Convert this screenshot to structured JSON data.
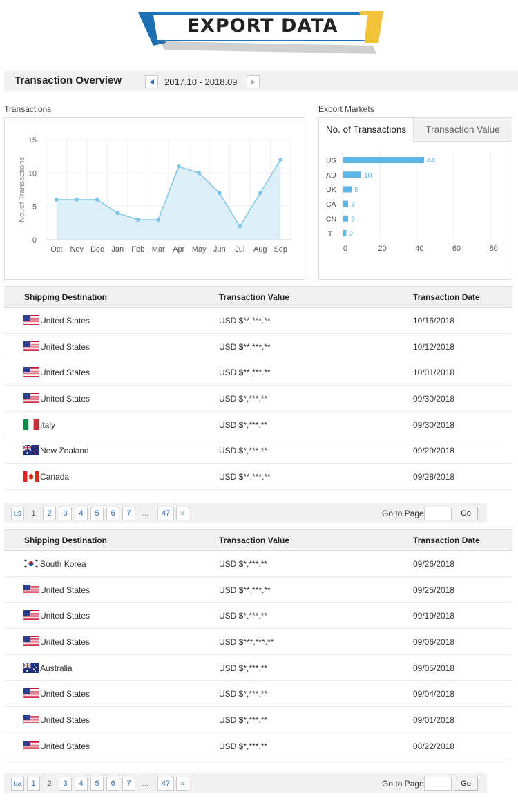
{
  "banner": {
    "title": "EXPORT DATA"
  },
  "overview": {
    "title": "Transaction Overview",
    "period": "2017.10 - 2018.09"
  },
  "transactions_label": "Transactions",
  "export_markets_label": "Export Markets",
  "tabs": {
    "active": "No. of Transactions",
    "inactive": "Transaction Value"
  },
  "colors": {
    "line": "#7fc6e8",
    "area": "#d9edf8",
    "bar": "#5bb5e6",
    "link": "#2f6db3"
  },
  "chart_data": [
    {
      "type": "area",
      "categories": [
        "Oct",
        "Nov",
        "Dec",
        "Jan",
        "Feb",
        "Mar",
        "Apr",
        "May",
        "Jun",
        "Jul",
        "Aug",
        "Sep"
      ],
      "values": [
        6,
        6,
        6,
        4,
        3,
        3,
        11,
        10,
        7,
        2,
        7,
        12
      ],
      "ylabel": "No. of Transactions",
      "yticks": [
        0,
        5,
        10,
        15
      ],
      "ylim": [
        0,
        15
      ],
      "grid": true
    },
    {
      "type": "bar",
      "orientation": "horizontal",
      "categories": [
        "US",
        "AU",
        "UK",
        "CA",
        "CN",
        "IT"
      ],
      "values": [
        44,
        10,
        5,
        3,
        3,
        2
      ],
      "xticks": [
        0,
        20,
        40,
        60,
        80
      ],
      "xlim": [
        0,
        85
      ],
      "grid": true
    }
  ],
  "table_headers": {
    "destination": "Shipping Destination",
    "value": "Transaction Value",
    "date": "Transaction Date"
  },
  "tables": [
    {
      "rows": [
        {
          "flag": "us-flag",
          "country": "United States",
          "value": "USD $**,***.**",
          "date": "10/16/2018"
        },
        {
          "flag": "us-flag",
          "country": "United States",
          "value": "USD $**,***.**",
          "date": "10/12/2018"
        },
        {
          "flag": "us-flag",
          "country": "United States",
          "value": "USD $**,***.**",
          "date": "10/01/2018"
        },
        {
          "flag": "us-flag",
          "country": "United States",
          "value": "USD $*,***.**",
          "date": "09/30/2018"
        },
        {
          "flag": "it-flag",
          "country": "Italy",
          "value": "USD $*,***.**",
          "date": "09/30/2018"
        },
        {
          "flag": "nz-flag",
          "country": "New Zealand",
          "value": "USD $*,***.**",
          "date": "09/29/2018"
        },
        {
          "flag": "ca-flag",
          "country": "Canada",
          "value": "USD $**,***.**",
          "date": "09/28/2018"
        }
      ],
      "pager": {
        "first": "us",
        "pages": [
          "1",
          "2",
          "3",
          "4",
          "5",
          "6",
          "7"
        ],
        "current": "1",
        "dots": "...",
        "last_page": "47",
        "last": "»"
      }
    },
    {
      "rows": [
        {
          "flag": "kr-flag",
          "country": "South Korea",
          "value": "USD $*,***.**",
          "date": "09/26/2018"
        },
        {
          "flag": "us-flag",
          "country": "United States",
          "value": "USD $**,***.**",
          "date": "09/25/2018"
        },
        {
          "flag": "us-flag",
          "country": "United States",
          "value": "USD $*,***.**",
          "date": "09/19/2018"
        },
        {
          "flag": "us-flag",
          "country": "United States",
          "value": "USD $***,***.**",
          "date": "09/06/2018"
        },
        {
          "flag": "au-flag",
          "country": "Australia",
          "value": "USD $*,***.**",
          "date": "09/05/2018"
        },
        {
          "flag": "us-flag",
          "country": "United States",
          "value": "USD $*,***.**",
          "date": "09/04/2018"
        },
        {
          "flag": "us-flag",
          "country": "United States",
          "value": "USD $*,***.**",
          "date": "09/01/2018"
        },
        {
          "flag": "us-flag",
          "country": "United States",
          "value": "USD $*,***.**",
          "date": "08/22/2018"
        }
      ],
      "pager": {
        "first": "ua",
        "pages": [
          "1",
          "2",
          "3",
          "4",
          "5",
          "6",
          "7"
        ],
        "current": "2",
        "dots": "...",
        "last_page": "47",
        "last": "»"
      }
    }
  ],
  "goto": {
    "label": "Go to Page",
    "button": "Go"
  }
}
